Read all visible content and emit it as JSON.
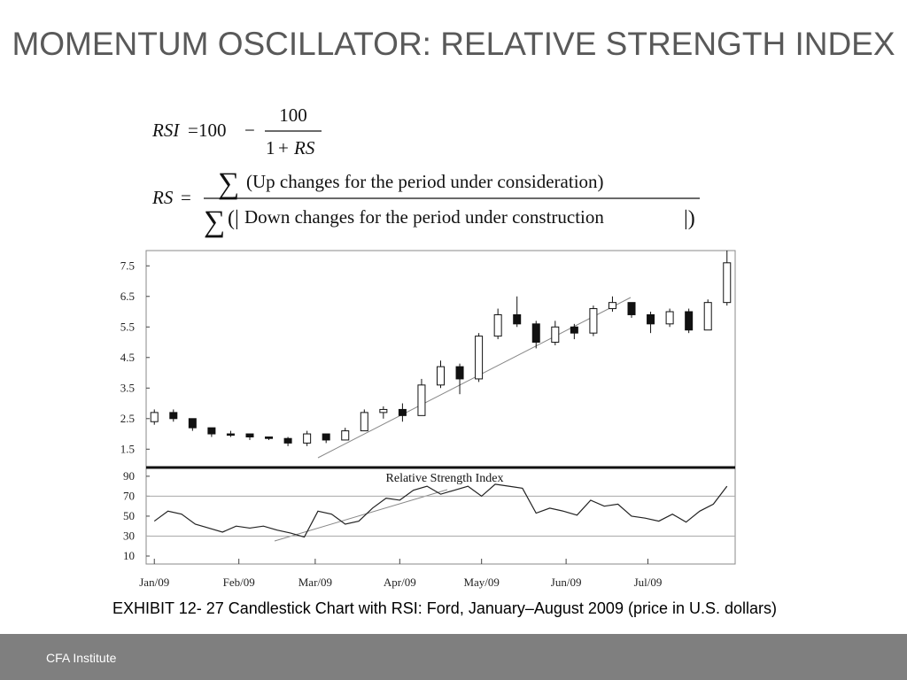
{
  "title": "MOMENTUM OSCILLATOR: RELATIVE STRENGTH INDEX",
  "formula_rsi": {
    "lhs": "RSI",
    "equals": "=",
    "constant": "100",
    "minus": "−",
    "numerator": "100",
    "denominator": [
      "1",
      "+",
      "RS"
    ]
  },
  "formula_rs": {
    "lhs": "RS",
    "equals": "=",
    "sum": "∑",
    "numerator": "(Up changes for the period under consideration)",
    "open": "(|",
    "denominator": "Down changes for the period under construction",
    "close": "|)"
  },
  "chart_data": [
    {
      "type": "candlestick",
      "x": [
        0,
        7,
        14,
        21,
        28,
        35,
        42,
        49,
        56,
        63,
        70,
        77,
        84,
        91,
        98,
        105,
        112,
        119,
        126,
        133,
        140,
        147,
        154,
        161,
        168,
        175,
        182,
        189,
        196,
        203,
        210
      ],
      "open": [
        2.4,
        2.7,
        2.5,
        2.2,
        2.0,
        2.0,
        1.9,
        1.85,
        1.7,
        2.0,
        1.8,
        2.1,
        2.7,
        2.8,
        2.6,
        3.6,
        4.2,
        3.8,
        5.2,
        5.9,
        5.6,
        5.0,
        5.5,
        5.3,
        6.1,
        6.3,
        5.9,
        5.6,
        6.0,
        5.4,
        6.3
      ],
      "high": [
        2.8,
        2.8,
        2.5,
        2.2,
        2.1,
        2.0,
        1.9,
        1.9,
        2.1,
        2.0,
        2.2,
        2.8,
        2.9,
        3.0,
        3.8,
        4.4,
        4.3,
        5.3,
        6.1,
        6.5,
        5.7,
        5.7,
        5.6,
        6.2,
        6.5,
        6.3,
        6.0,
        6.1,
        6.1,
        6.4,
        8.0
      ],
      "low": [
        2.3,
        2.4,
        2.1,
        1.9,
        1.9,
        1.8,
        1.8,
        1.6,
        1.6,
        1.7,
        1.8,
        2.1,
        2.5,
        2.4,
        2.6,
        3.5,
        3.3,
        3.7,
        5.1,
        5.5,
        4.8,
        4.9,
        5.1,
        5.2,
        6.0,
        5.8,
        5.3,
        5.5,
        5.3,
        5.4,
        6.2
      ],
      "close": [
        2.7,
        2.5,
        2.2,
        2.0,
        2.0,
        1.9,
        1.85,
        1.7,
        2.0,
        1.8,
        2.1,
        2.7,
        2.8,
        2.6,
        3.6,
        4.2,
        3.8,
        5.2,
        5.9,
        5.6,
        5.0,
        5.5,
        5.3,
        6.1,
        6.3,
        5.9,
        5.6,
        6.0,
        5.4,
        6.3,
        7.6
      ],
      "xlim": [
        -3,
        213
      ],
      "ylim": [
        0.9,
        8.0
      ],
      "yticks": [
        1.5,
        2.5,
        3.5,
        4.5,
        5.5,
        6.5,
        7.5
      ]
    },
    {
      "type": "line",
      "title": "Relative Strength Index",
      "x": [
        0,
        5,
        10,
        15,
        20,
        25,
        30,
        35,
        40,
        45,
        50,
        55,
        60,
        65,
        70,
        75,
        80,
        85,
        90,
        95,
        100,
        105,
        110,
        115,
        120,
        125,
        130,
        135,
        140,
        145,
        150,
        155,
        160,
        165,
        170,
        175,
        180,
        185,
        190,
        195,
        200,
        205,
        210
      ],
      "values": [
        45,
        55,
        52,
        42,
        38,
        34,
        40,
        38,
        40,
        36,
        33,
        29,
        55,
        52,
        42,
        45,
        58,
        68,
        66,
        76,
        80,
        72,
        76,
        80,
        70,
        82,
        80,
        78,
        53,
        58,
        55,
        51,
        66,
        60,
        62,
        50,
        48,
        45,
        52,
        44,
        55,
        62,
        80
      ],
      "color": "#222222",
      "xlim": [
        -3,
        213
      ],
      "ylim": [
        2,
        97
      ],
      "yticks": [
        10,
        30,
        50,
        70,
        90
      ],
      "reference_lines": [
        70,
        30
      ],
      "xticks": [
        {
          "value": 0,
          "label": "Jan/09"
        },
        {
          "value": 31,
          "label": "Feb/09"
        },
        {
          "value": 59,
          "label": "Mar/09"
        },
        {
          "value": 90,
          "label": "Apr/09"
        },
        {
          "value": 120,
          "label": "May/09"
        },
        {
          "value": 151,
          "label": "Jun/09"
        },
        {
          "value": 181,
          "label": "Jul/09"
        }
      ]
    }
  ],
  "caption": "EXHIBIT 12- 27 Candlestick Chart with RSI: Ford, January–August 2009 (price in U.S. dollars)",
  "footer": "CFA Institute"
}
